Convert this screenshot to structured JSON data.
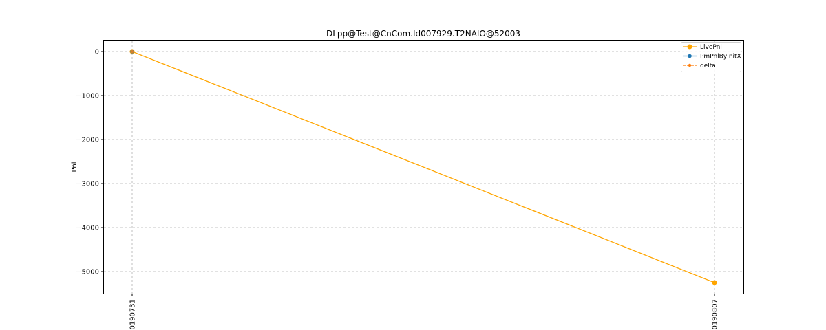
{
  "chart_data": {
    "type": "line",
    "title": "DLpp@Test@CnCom.Id007929.T2NAIO@52003",
    "xlabel": "",
    "ylabel": "Pnl",
    "categories": [
      "20190731",
      "20190807"
    ],
    "y_ticks": [
      0,
      -1000,
      -2000,
      -3000,
      -4000,
      -5000
    ],
    "ylim": [
      -5500,
      250
    ],
    "grid": true,
    "legend_position": "top-right",
    "series": [
      {
        "name": "LivePnl",
        "values": [
          0,
          -5250
        ],
        "color": "#ffa500",
        "marker": "circle",
        "line_style": "solid"
      },
      {
        "name": "PmPnlByInitX",
        "values": [
          0,
          null
        ],
        "color": "#1f77b4",
        "marker": "circle",
        "line_style": "solid"
      },
      {
        "name": "delta",
        "values": [
          0,
          null
        ],
        "color": "#ff7f0e",
        "marker": "circle",
        "line_style": "dashed"
      }
    ]
  }
}
